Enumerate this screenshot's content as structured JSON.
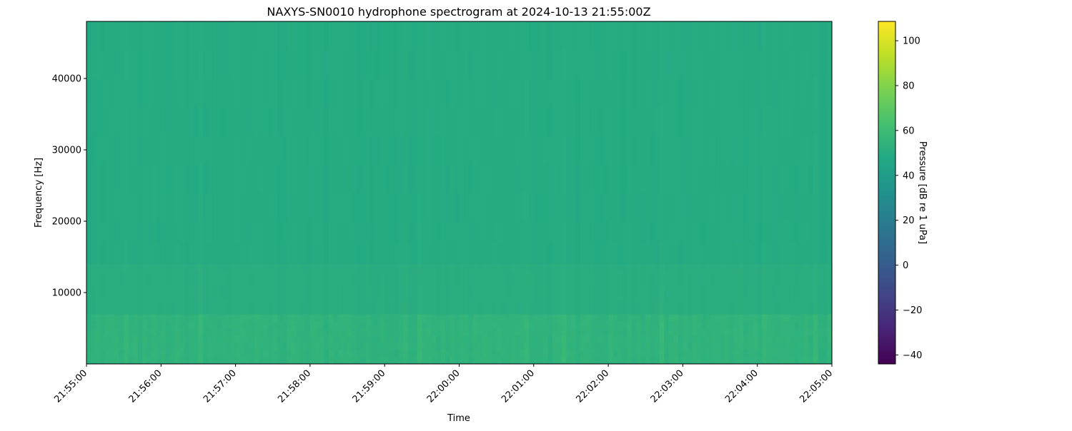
{
  "chart_data": {
    "type": "heatmap",
    "title": "NAXYS-SN0010 hydrophone spectrogram at 2024-10-13 21:55:00Z",
    "xlabel": "Time",
    "ylabel": "Frequency [Hz]",
    "colorbar_label": "Pressure [dB re 1 uPa]",
    "colormap": "viridis",
    "x_ticks": [
      "21:55:00",
      "21:56:00",
      "21:57:00",
      "21:58:00",
      "21:59:00",
      "22:00:00",
      "22:01:00",
      "22:02:00",
      "22:03:00",
      "22:04:00",
      "22:05:00"
    ],
    "xlim": [
      "21:55:00",
      "22:05:00"
    ],
    "y_ticks": [
      10000,
      20000,
      30000,
      40000
    ],
    "ylim": [
      0,
      48000
    ],
    "colorbar_ticks": [
      -40,
      -20,
      0,
      20,
      40,
      60,
      80,
      100
    ],
    "clim": [
      -44,
      108.6
    ],
    "approx_level_db_by_band": [
      {
        "freq_hz": [
          0,
          300
        ],
        "db": 52
      },
      {
        "freq_hz": [
          300,
          7000
        ],
        "db": 54
      },
      {
        "freq_hz": [
          7000,
          14000
        ],
        "db": 51
      },
      {
        "freq_hz": [
          14000,
          48000
        ],
        "db": 49
      }
    ],
    "grid": false
  }
}
